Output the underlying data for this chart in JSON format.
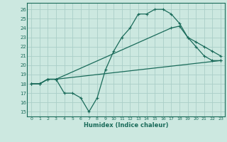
{
  "xlabel": "Humidex (Indice chaleur)",
  "bg_color": "#cce8e0",
  "grid_color": "#aacec8",
  "line_color": "#1a6b5a",
  "xlim": [
    -0.5,
    23.5
  ],
  "ylim": [
    14.5,
    26.7
  ],
  "yticks": [
    15,
    16,
    17,
    18,
    19,
    20,
    21,
    22,
    23,
    24,
    25,
    26
  ],
  "xticks": [
    0,
    1,
    2,
    3,
    4,
    5,
    6,
    7,
    8,
    9,
    10,
    11,
    12,
    13,
    14,
    15,
    16,
    17,
    18,
    19,
    20,
    21,
    22,
    23
  ],
  "line1_x": [
    0,
    1,
    2,
    3,
    4,
    5,
    6,
    7,
    8,
    9,
    10,
    11,
    12,
    13,
    14,
    15,
    16,
    17,
    18,
    19,
    20,
    21,
    22,
    23
  ],
  "line1_y": [
    18,
    18,
    18.5,
    18.5,
    17,
    17,
    16.5,
    15,
    16.5,
    19.5,
    21.5,
    23,
    24,
    25.5,
    25.5,
    26,
    26,
    25.5,
    24.5,
    23,
    22,
    21,
    20.5,
    20.5
  ],
  "line2_x": [
    0,
    1,
    2,
    3,
    23
  ],
  "line2_y": [
    18,
    18,
    18.5,
    18.5,
    20.5
  ],
  "line3_x": [
    0,
    1,
    2,
    3,
    17,
    18,
    19,
    20,
    21,
    22,
    23
  ],
  "line3_y": [
    18,
    18,
    18.5,
    18.5,
    24,
    24.2,
    23,
    22.5,
    22,
    21.5,
    21
  ]
}
